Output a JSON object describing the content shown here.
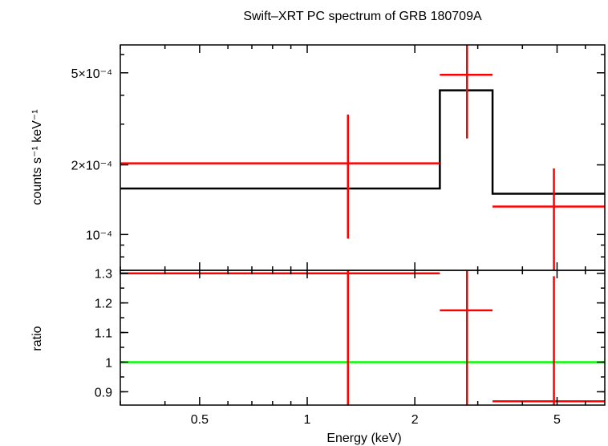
{
  "chart_data": {
    "title": "Swift–XRT PC spectrum of GRB 180709A",
    "x_axis": {
      "label": "Energy (keV)",
      "scale": "log",
      "range": [
        0.3,
        6.8
      ],
      "ticks": [
        {
          "value": 0.5,
          "label": "0.5"
        },
        {
          "value": 1,
          "label": "1"
        },
        {
          "value": 2,
          "label": "2"
        },
        {
          "value": 5,
          "label": "5"
        }
      ]
    },
    "panels": [
      {
        "type": "line",
        "name": "spectrum",
        "y_axis": {
          "label": "counts s⁻¹ keV⁻¹",
          "scale": "log",
          "range": [
            7e-05,
            0.00066
          ],
          "ticks": [
            {
              "value": 0.0005,
              "label": "5×10⁻⁴"
            },
            {
              "value": 0.0002,
              "label": "2×10⁻⁴"
            },
            {
              "value": 0.0001,
              "label": "10⁻⁴"
            }
          ]
        },
        "data": [
          {
            "x_lo": 0.3,
            "x_hi": 2.35,
            "x": 1.3,
            "y": 0.000203,
            "y_lo": 9.6e-05,
            "y_hi": 0.00033
          },
          {
            "x_lo": 2.35,
            "x_hi": 3.3,
            "x": 2.8,
            "y": 0.00049,
            "y_lo": 0.00026,
            "y_hi": 0.00066
          },
          {
            "x_lo": 3.3,
            "x_hi": 6.8,
            "x": 4.9,
            "y": 0.000132,
            "y_lo": 7e-05,
            "y_hi": 0.000193
          }
        ],
        "model": [
          {
            "x_lo": 0.3,
            "x_hi": 2.35,
            "y": 0.000158
          },
          {
            "x_lo": 2.35,
            "x_hi": 3.3,
            "y": 0.00042
          },
          {
            "x_lo": 3.3,
            "x_hi": 6.8,
            "y": 0.00015
          }
        ]
      },
      {
        "type": "line",
        "name": "ratio",
        "y_axis": {
          "label": "ratio",
          "scale": "linear",
          "range": [
            0.855,
            1.31
          ],
          "ticks": [
            {
              "value": 0.9,
              "label": "0.9"
            },
            {
              "value": 1.0,
              "label": "1"
            },
            {
              "value": 1.1,
              "label": "1.1"
            },
            {
              "value": 1.2,
              "label": "1.2"
            },
            {
              "value": 1.3,
              "label": "1.3"
            }
          ]
        },
        "data": [
          {
            "x_lo": 0.3,
            "x_hi": 2.35,
            "x": 1.3,
            "y": 1.3,
            "y_lo": 0.855,
            "y_hi": 1.31
          },
          {
            "x_lo": 2.35,
            "x_hi": 3.3,
            "x": 2.8,
            "y": 1.175,
            "y_lo": 0.855,
            "y_hi": 1.31
          },
          {
            "x_lo": 3.3,
            "x_hi": 6.8,
            "x": 4.9,
            "y": 0.868,
            "y_lo": 0.855,
            "y_hi": 1.29
          }
        ],
        "reference_line": 1.0
      }
    ],
    "colors": {
      "data": "#ff0000",
      "model": "#000000",
      "reference": "#00ff00",
      "axes": "#000000"
    }
  }
}
